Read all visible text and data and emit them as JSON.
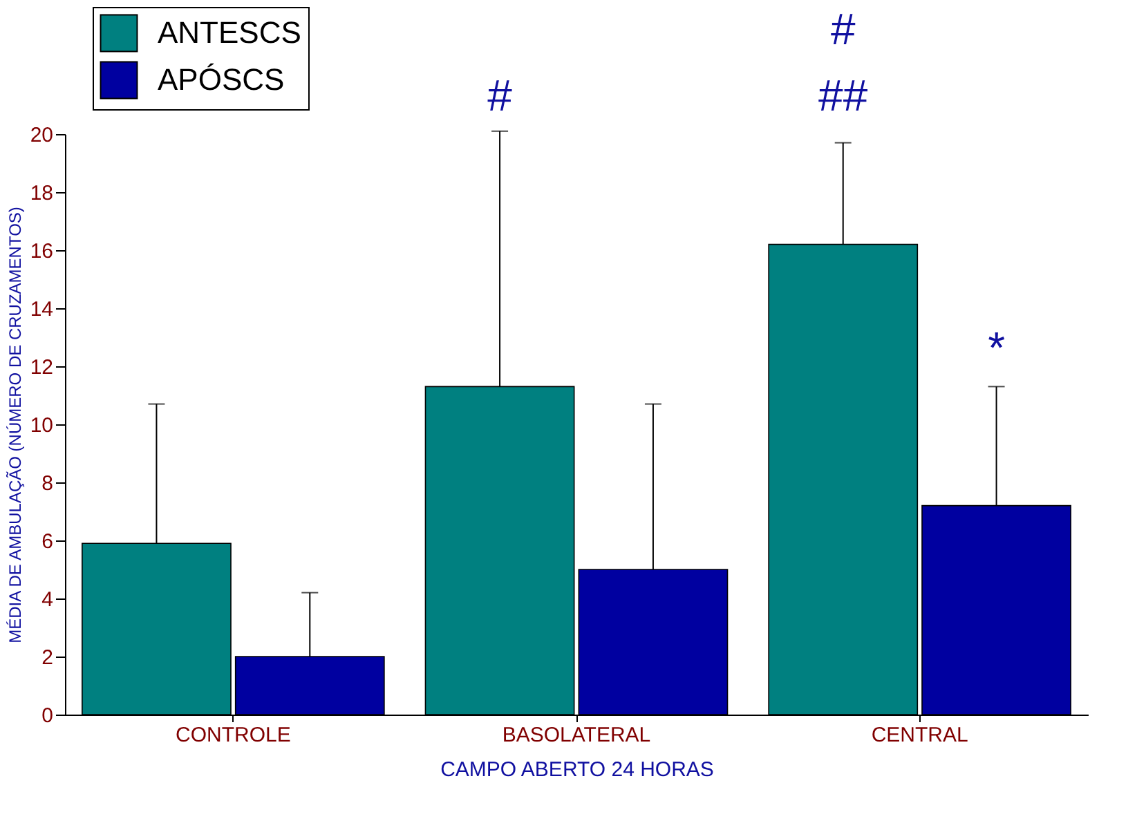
{
  "chart_data": {
    "type": "bar",
    "xlabel": "CAMPO ABERTO 24 HORAS",
    "ylabel": "MÉDIA DE AMBULAÇÃO (NÚMERO DE CRUZAMENTOS)",
    "categories": [
      "CONTROLE",
      "BASOLATERAL",
      "CENTRAL"
    ],
    "series": [
      {
        "name": "ANTESCS",
        "color": "#008080",
        "values": [
          5.9,
          11.3,
          16.2
        ],
        "errors": [
          [
            5.9,
            10.7
          ],
          [
            11.3,
            20.1
          ],
          [
            16.2,
            19.7
          ]
        ]
      },
      {
        "name": "APÓSCS",
        "color": "#0000a0",
        "values": [
          2.0,
          5.0,
          7.2
        ],
        "errors": [
          [
            2.0,
            4.2
          ],
          [
            5.0,
            10.7
          ],
          [
            7.2,
            11.3
          ]
        ]
      }
    ],
    "ylim": [
      0,
      20
    ],
    "yticks": [
      0,
      2,
      4,
      6,
      8,
      10,
      12,
      14,
      16,
      18,
      20
    ],
    "grid": false,
    "legend": "top left",
    "annotations": [
      "#",
      "##",
      "#",
      {
        "text": "*",
        "x": "CENTRAL",
        "y": 11.3
      }
    ]
  }
}
